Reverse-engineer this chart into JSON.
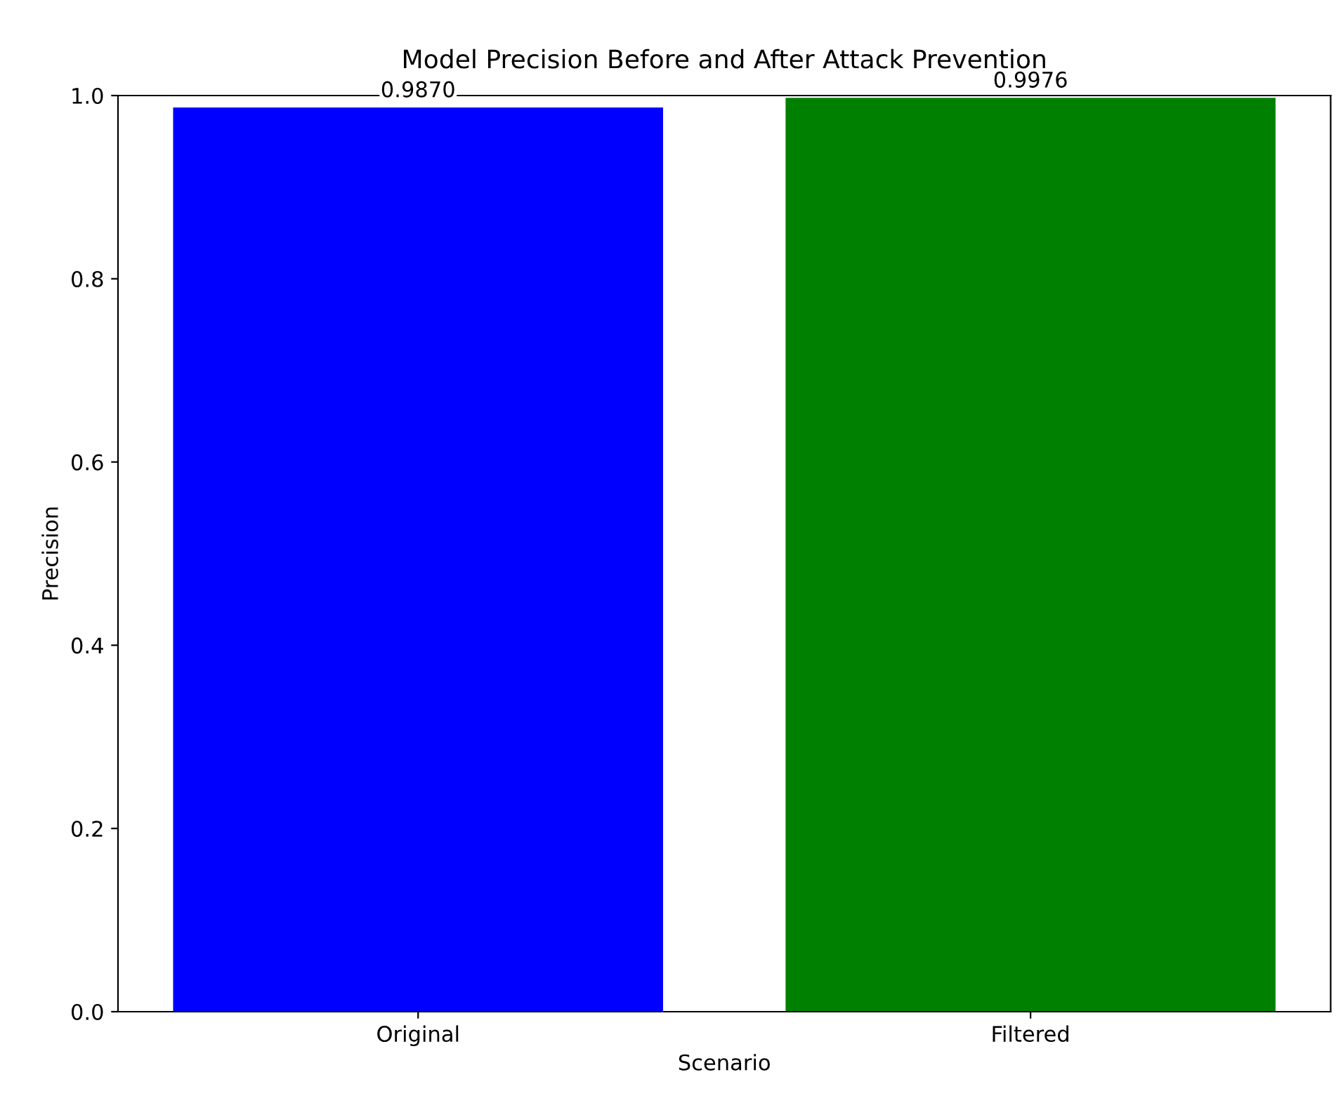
{
  "chart_data": {
    "type": "bar",
    "title": "Model Precision Before and After Attack Prevention",
    "xlabel": "Scenario",
    "ylabel": "Precision",
    "categories": [
      "Original",
      "Filtered"
    ],
    "values": [
      0.987,
      0.9976
    ],
    "colors": [
      "#0000ff",
      "#008000"
    ],
    "value_labels": [
      "0.9870",
      "0.9976"
    ],
    "ylim": [
      0,
      1.0
    ],
    "yticks": [
      {
        "value": 0,
        "label": "0.0"
      },
      {
        "value": 0.2,
        "label": "0.2"
      },
      {
        "value": 0.4,
        "label": "0.4"
      },
      {
        "value": 0.6,
        "label": "0.6"
      },
      {
        "value": 0.8,
        "label": "0.8"
      },
      {
        "value": 1.0,
        "label": "1.0"
      }
    ],
    "grid": false,
    "legend": false
  }
}
